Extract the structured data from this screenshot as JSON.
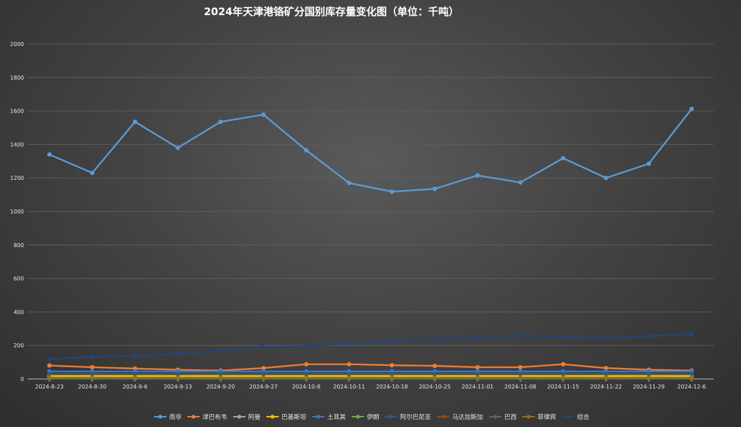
{
  "chart_data": {
    "type": "line",
    "title": "2024年天津港铬矿分国别库存量变化图（单位：千吨）",
    "xlabel": "",
    "ylabel": "",
    "ylim": [
      0,
      2000
    ],
    "yticks": [
      0,
      200,
      400,
      600,
      800,
      1000,
      1200,
      1400,
      1600,
      1800,
      2000
    ],
    "grid": true,
    "legend_position": "bottom",
    "categories": [
      "2024-8-23",
      "2024-8-30",
      "2024-9-6",
      "2024-9-13",
      "2024-9-20",
      "2024-9-27",
      "2024-10-8",
      "2024-10-11",
      "2024-10-18",
      "2024-10-25",
      "2024-11-01",
      "2024-11-08",
      "2024-11-15",
      "2024-11-22",
      "2024-11-29",
      "2024-12-6"
    ],
    "series": [
      {
        "name": "南非",
        "color": "#5b9bd5",
        "values": [
          1340,
          1230,
          1535,
          1380,
          1535,
          1578,
          1365,
          1170,
          1118,
          1135,
          1215,
          1173,
          1318,
          1200,
          1285,
          1612
        ]
      },
      {
        "name": "津巴布韦",
        "color": "#ed7d31",
        "values": [
          80,
          70,
          62,
          55,
          50,
          65,
          88,
          88,
          82,
          78,
          70,
          70,
          88,
          65,
          55,
          50
        ]
      },
      {
        "name": "阿曼",
        "color": "#a5a5a5",
        "values": [
          12,
          12,
          12,
          12,
          12,
          12,
          12,
          12,
          12,
          12,
          12,
          12,
          12,
          12,
          12,
          12
        ]
      },
      {
        "name": "巴基斯坦",
        "color": "#ffc000",
        "values": [
          18,
          18,
          18,
          18,
          18,
          18,
          18,
          18,
          18,
          18,
          18,
          18,
          18,
          18,
          18,
          18
        ]
      },
      {
        "name": "土耳其",
        "color": "#4472c4",
        "values": [
          45,
          45,
          45,
          45,
          45,
          45,
          45,
          45,
          45,
          45,
          45,
          45,
          45,
          45,
          45,
          45
        ]
      },
      {
        "name": "伊朗",
        "color": "#70ad47",
        "values": [
          2,
          2,
          2,
          2,
          2,
          2,
          2,
          2,
          2,
          2,
          2,
          2,
          2,
          2,
          2,
          2
        ]
      },
      {
        "name": "阿尔巴尼亚",
        "color": "#255e91",
        "values": [
          30,
          30,
          30,
          30,
          30,
          30,
          30,
          30,
          30,
          30,
          30,
          30,
          30,
          30,
          30,
          30
        ]
      },
      {
        "name": "马达加斯加",
        "color": "#9e480e",
        "values": [
          5,
          5,
          5,
          5,
          5,
          5,
          5,
          5,
          5,
          5,
          5,
          5,
          5,
          5,
          5,
          5
        ]
      },
      {
        "name": "巴西",
        "color": "#636363",
        "values": [
          3,
          3,
          3,
          3,
          3,
          3,
          3,
          3,
          3,
          3,
          3,
          3,
          3,
          3,
          3,
          3
        ]
      },
      {
        "name": "菲律宾",
        "color": "#997300",
        "values": [
          8,
          8,
          8,
          8,
          8,
          8,
          8,
          8,
          8,
          8,
          8,
          8,
          8,
          8,
          8,
          8
        ]
      },
      {
        "name": "综合",
        "color": "#264478",
        "values": [
          118,
          132,
          138,
          150,
          167,
          192,
          195,
          215,
          225,
          235,
          245,
          258,
          250,
          243,
          255,
          267
        ]
      }
    ]
  }
}
